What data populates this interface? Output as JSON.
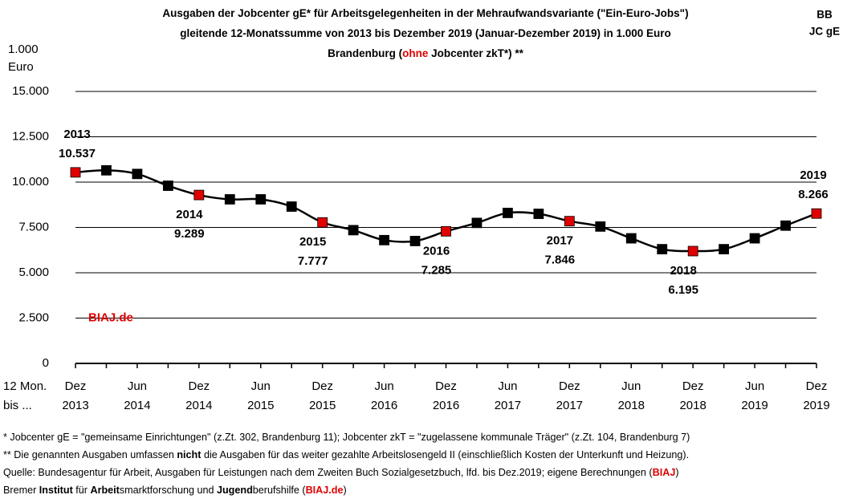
{
  "chart_data": {
    "type": "line",
    "title_lines": [
      [
        {
          "text": "Ausgaben der Jobcenter gE* für Arbeitsgelegenheiten in der Mehraufwandsvariante (\"Ein-Euro-Jobs\")"
        }
      ],
      [
        {
          "text": "gleitende 12-Monatssumme von 2013 bis Dezember 2019 (Januar-Dezember 2019) in 1.000 Euro"
        }
      ],
      [
        {
          "text": "Brandenburg ("
        },
        {
          "text": "ohne",
          "color": "#e00000"
        },
        {
          "text": " Jobcenter zkT*) **"
        }
      ]
    ],
    "corner_label": [
      "BB",
      "JC gE"
    ],
    "ylabel": [
      "1.000",
      "Euro"
    ],
    "xlabel": [
      "12 Mon.",
      "bis ..."
    ],
    "watermark": "BIAJ.de",
    "categories": [
      "Dez 2013",
      null,
      "Jun 2014",
      null,
      "Dez 2014",
      null,
      "Jun 2015",
      null,
      "Dez 2015",
      null,
      "Jun 2016",
      null,
      "Dez 2016",
      null,
      "Jun 2017",
      null,
      "Dez 2017",
      null,
      "Jun 2018",
      null,
      "Dez 2018",
      null,
      "Jun 2019",
      null,
      "Dez 2019"
    ],
    "series": [
      {
        "color": "#000000",
        "marker_colors": [
          "#e00000",
          "#000000",
          "#000000",
          "#000000",
          "#e00000",
          "#000000",
          "#000000",
          "#000000",
          "#e00000",
          "#000000",
          "#000000",
          "#000000",
          "#e00000",
          "#000000",
          "#000000",
          "#000000",
          "#e00000",
          "#000000",
          "#000000",
          "#000000",
          "#e00000",
          "#000000",
          "#000000",
          "#000000",
          "#e00000"
        ],
        "values": [
          10537,
          10650,
          10450,
          9800,
          9289,
          9050,
          9050,
          8650,
          7777,
          7350,
          6800,
          6750,
          7285,
          7750,
          8300,
          8250,
          7846,
          7550,
          6900,
          6300,
          6195,
          6300,
          6900,
          7600,
          8266
        ],
        "value_labels": [
          "10.537",
          null,
          null,
          null,
          "9.289",
          null,
          null,
          null,
          "7.777",
          null,
          null,
          null,
          "7.285",
          null,
          null,
          null,
          "7.846",
          null,
          null,
          null,
          "6.195",
          null,
          null,
          null,
          "8.266"
        ]
      }
    ],
    "annotations": [
      "2013",
      "2014",
      "2015",
      "2016",
      "2017",
      "2018",
      "2019"
    ],
    "ylim": [
      0,
      15000
    ],
    "yticks": [
      {
        "value": 0,
        "label": "0"
      },
      {
        "value": 2500,
        "label": "2.500"
      },
      {
        "value": 5000,
        "label": "5.000"
      },
      {
        "value": 7500,
        "label": "7.500"
      },
      {
        "value": 10000,
        "label": "10.000"
      },
      {
        "value": 12500,
        "label": "12.500"
      },
      {
        "value": 15000,
        "label": "15.000"
      }
    ],
    "grid": true,
    "footnotes": [
      [
        {
          "text": "*    Jobcenter gE = \"gemeinsame Einrichtungen\" (z.Zt. 302, Brandenburg 11); Jobcenter zkT = \"zugelassene kommunale Träger\" (z.Zt. 104, Brandenburg 7)"
        }
      ],
      [
        {
          "text": "** Die genannten Ausgaben umfassen "
        },
        {
          "text": "nicht",
          "bold": true
        },
        {
          "text": " die Ausgaben für das weiter gezahlte Arbeitslosengeld II (einschließlich Kosten der Unterkunft und Heizung)."
        }
      ],
      [
        {
          "text": "Quelle: Bundesagentur für Arbeit, Ausgaben für Leistungen nach dem Zweiten Buch Sozialgesetzbuch, lfd. bis Dez.2019; eigene Berechnungen ("
        },
        {
          "text": "BIAJ",
          "bold": true,
          "color": "#e00000"
        },
        {
          "text": ")"
        }
      ],
      [
        {
          "text": "Bremer "
        },
        {
          "text": "Institut",
          "bold": true
        },
        {
          "text": " für "
        },
        {
          "text": "Arbeit",
          "bold": true
        },
        {
          "text": "smarktforschung und "
        },
        {
          "text": "Jugend",
          "bold": true
        },
        {
          "text": "berufshilfe ("
        },
        {
          "text": "BIAJ.de",
          "bold": true,
          "color": "#e00000"
        },
        {
          "text": ")"
        }
      ]
    ]
  }
}
